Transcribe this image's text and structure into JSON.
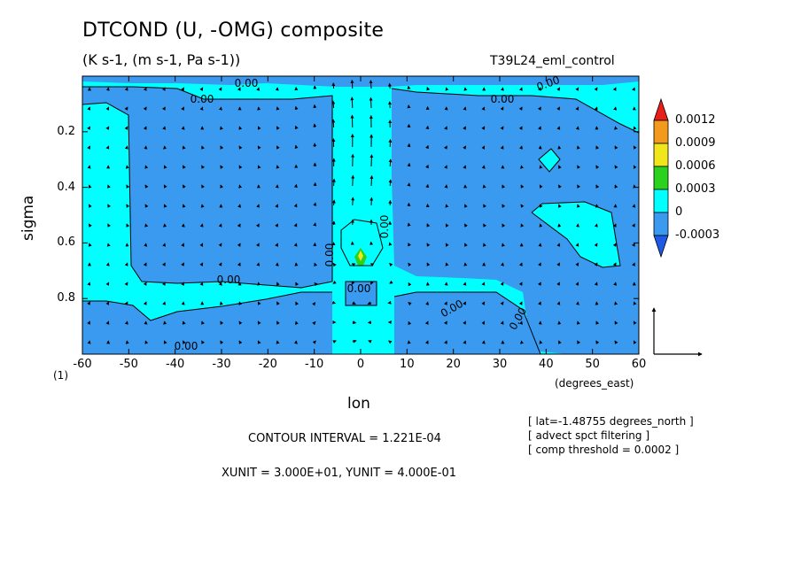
{
  "chart_data": {
    "type": "contour-vector",
    "title": "DTCOND (U, -OMG) composite",
    "subtitle": "(K s-1, (m s-1, Pa s-1))",
    "run_label": "T39L24_eml_control",
    "xlabel": "lon",
    "xlabel_units": "(degrees_east)",
    "xlabel_index": "(1)",
    "ylabel": "sigma",
    "x_ticks": [
      "-60",
      "-50",
      "-40",
      "-30",
      "-20",
      "-10",
      "0",
      "10",
      "20",
      "30",
      "40",
      "50",
      "60"
    ],
    "y_ticks": [
      "0.2",
      "0.4",
      "0.6",
      "0.8"
    ],
    "xlim": [
      -60,
      60
    ],
    "ylim": [
      0.0,
      1.0
    ],
    "y_inverted": true,
    "contour_labels": [
      "0.00",
      "0.00",
      "0.00",
      "0.00",
      "0.00",
      "0.00",
      "0.00",
      "0.00",
      "0.00",
      "0.00",
      "0.00"
    ],
    "colorbar": {
      "labels": [
        "0.0012",
        "0.0009",
        "0.0006",
        "0.0003",
        "0",
        "-0.0003"
      ],
      "colors": [
        "#e8201c",
        "#f39a1c",
        "#f0e61c",
        "#2ad21e",
        "#00ffff",
        "#3a9af0",
        "#1e5ae6"
      ]
    },
    "contour_interval": "CONTOUR INTERVAL = 1.221E-04",
    "vector_units": "XUNIT = 3.000E+01, YUNIT = 4.000E-01",
    "notes": [
      "[ lat=-1.48755 degrees_north ]",
      "[ advect spct filtering ]",
      "[ comp threshold = 0.0002 ]"
    ]
  }
}
